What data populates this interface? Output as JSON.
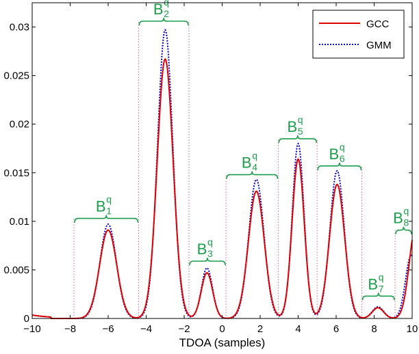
{
  "chart_data": {
    "type": "line",
    "xlabel": "TDOA (samples)",
    "ylabel": "",
    "xlim": [
      -10,
      10
    ],
    "ylim": [
      0,
      0.0325
    ],
    "xticks": [
      "−10",
      "−8",
      "−6",
      "−4",
      "−2",
      "0",
      "2",
      "4",
      "6",
      "8",
      "10"
    ],
    "xtick_values": [
      -10,
      -8,
      -6,
      -4,
      -2,
      0,
      2,
      4,
      6,
      8,
      10
    ],
    "yticks": [
      "0",
      "0.005",
      "0.01",
      "0.015",
      "0.02",
      "0.025",
      "0.03"
    ],
    "ytick_values": [
      0,
      0.005,
      0.01,
      0.015,
      0.02,
      0.025,
      0.03
    ],
    "grid": false,
    "legend_position": "top-right",
    "series": [
      {
        "name": "GCC",
        "color": "#e00000",
        "style": "solid",
        "peaks": [
          {
            "x": -6.0,
            "y": 0.0091,
            "sigma": 0.45
          },
          {
            "x": -3.0,
            "y": 0.0267,
            "sigma": 0.42
          },
          {
            "x": -0.8,
            "y": 0.0047,
            "sigma": 0.3
          },
          {
            "x": 1.8,
            "y": 0.0131,
            "sigma": 0.42
          },
          {
            "x": 4.0,
            "y": 0.0164,
            "sigma": 0.32
          },
          {
            "x": 6.05,
            "y": 0.0138,
            "sigma": 0.4
          },
          {
            "x": 8.2,
            "y": 0.0011,
            "sigma": 0.3
          },
          {
            "x": 10.2,
            "y": 0.0095,
            "sigma": 0.35
          }
        ]
      },
      {
        "name": "GMM",
        "color": "#0000cc",
        "style": "dotted",
        "peaks": [
          {
            "x": -6.0,
            "y": 0.0097,
            "sigma": 0.43
          },
          {
            "x": -3.0,
            "y": 0.0297,
            "sigma": 0.4
          },
          {
            "x": -0.8,
            "y": 0.0052,
            "sigma": 0.29
          },
          {
            "x": 1.8,
            "y": 0.0143,
            "sigma": 0.4
          },
          {
            "x": 4.0,
            "y": 0.018,
            "sigma": 0.31
          },
          {
            "x": 6.05,
            "y": 0.0152,
            "sigma": 0.38
          },
          {
            "x": 8.2,
            "y": 0.0012,
            "sigma": 0.3
          },
          {
            "x": 9.95,
            "y": 0.0065,
            "sigma": 0.3
          }
        ]
      }
    ],
    "bands": [
      {
        "label": "B",
        "sub": "1",
        "sup": "q",
        "x_start": -7.8,
        "x_end": -4.4,
        "bracket_y": 0.0103
      },
      {
        "label": "B",
        "sub": "2",
        "sup": "q",
        "x_start": -4.4,
        "x_end": -1.75,
        "bracket_y": 0.0306
      },
      {
        "label": "B",
        "sub": "3",
        "sup": "q",
        "x_start": -1.75,
        "x_end": 0.2,
        "bracket_y": 0.0059
      },
      {
        "label": "B",
        "sub": "4",
        "sup": "q",
        "x_start": 0.2,
        "x_end": 2.95,
        "bracket_y": 0.0148
      },
      {
        "label": "B",
        "sub": "5",
        "sup": "q",
        "x_start": 2.95,
        "x_end": 5.0,
        "bracket_y": 0.0185
      },
      {
        "label": "B",
        "sub": "6",
        "sup": "q",
        "x_start": 5.0,
        "x_end": 7.35,
        "bracket_y": 0.0157
      },
      {
        "label": "B",
        "sub": "7",
        "sup": "q",
        "x_start": 7.35,
        "x_end": 9.1,
        "bracket_y": 0.0023
      },
      {
        "label": "B",
        "sub": "8",
        "sup": "q",
        "x_start": 9.1,
        "x_end": 10.0,
        "bracket_y": 0.0091
      }
    ],
    "band_color": "#1a9e4a",
    "divider_color": "#e0607a"
  }
}
